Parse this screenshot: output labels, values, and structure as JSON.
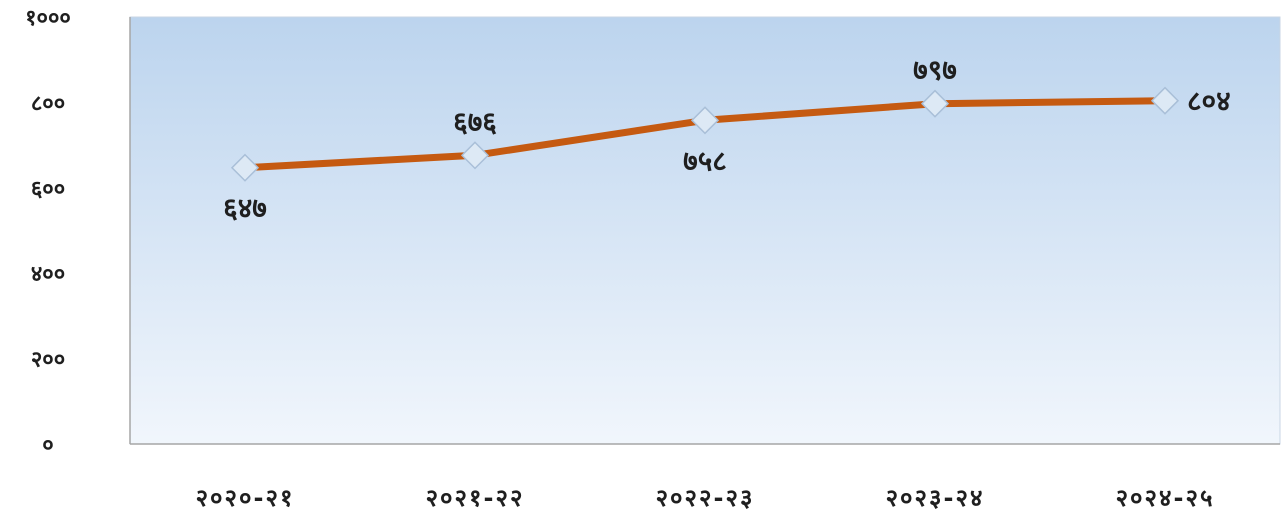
{
  "chart_data": {
    "type": "line",
    "title": "",
    "xlabel": "",
    "ylabel": "",
    "ylim": [
      0,
      1000
    ],
    "y_ticks": [
      {
        "value": 0,
        "label": "०"
      },
      {
        "value": 200,
        "label": "२००"
      },
      {
        "value": 400,
        "label": "४००"
      },
      {
        "value": 600,
        "label": "६००"
      },
      {
        "value": 800,
        "label": "८००"
      },
      {
        "value": 1000,
        "label": "१०००"
      }
    ],
    "categories": [
      "२०२०-२१",
      "२०२१-२२",
      "२०२२-२३",
      "२०२३-२४",
      "२०२४-२५"
    ],
    "series": [
      {
        "values": [
          647,
          676,
          758,
          797,
          804
        ],
        "labels": [
          "६४७",
          "६७६",
          "७५८",
          "७९७",
          "८०४"
        ]
      }
    ],
    "grid": false,
    "legend": "none",
    "colors": {
      "line": "#c55a11",
      "marker_fill": "#dde9f5",
      "marker_stroke": "#a9bfd8",
      "plot_top": "#bcd4ee",
      "plot_bottom": "#f1f6fc",
      "axis": "#a6a6a6"
    }
  }
}
